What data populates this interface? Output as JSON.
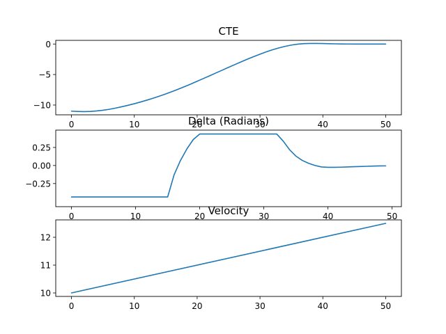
{
  "chart_data": [
    {
      "type": "line",
      "title": "CTE",
      "xlabel": "",
      "ylabel": "",
      "xlim": [
        -2.5,
        52.5
      ],
      "ylim": [
        -11.6,
        0.6
      ],
      "xticks": [
        0,
        10,
        20,
        30,
        40,
        50
      ],
      "yticks": [
        -10,
        -5,
        0
      ],
      "grid": false,
      "color": "#1f77b4",
      "x": [
        0,
        1,
        2,
        3,
        4,
        5,
        6,
        7,
        8,
        9,
        10,
        11,
        12,
        13,
        14,
        15,
        16,
        17,
        18,
        19,
        20,
        21,
        22,
        23,
        24,
        25,
        26,
        27,
        28,
        29,
        30,
        31,
        32,
        33,
        34,
        35,
        36,
        37,
        38,
        39,
        40,
        41,
        42,
        43,
        44,
        45,
        46,
        47,
        48,
        49,
        50
      ],
      "y": [
        -11.0,
        -11.05,
        -11.08,
        -11.05,
        -10.97,
        -10.85,
        -10.7,
        -10.5,
        -10.28,
        -10.04,
        -9.78,
        -9.5,
        -9.2,
        -8.88,
        -8.54,
        -8.18,
        -7.8,
        -7.4,
        -6.98,
        -6.55,
        -6.1,
        -5.65,
        -5.2,
        -4.74,
        -4.28,
        -3.82,
        -3.37,
        -2.92,
        -2.48,
        -2.06,
        -1.66,
        -1.28,
        -0.94,
        -0.64,
        -0.38,
        -0.17,
        -0.02,
        0.07,
        0.1,
        0.1,
        0.08,
        0.05,
        0.03,
        0.01,
        0.0,
        -0.01,
        -0.01,
        -0.01,
        -0.01,
        -0.01,
        -0.01
      ]
    },
    {
      "type": "line",
      "title": "Delta (Radians)",
      "xlabel": "",
      "ylabel": "",
      "xlim": [
        -2.45,
        51.45
      ],
      "ylim": [
        -0.57,
        0.49
      ],
      "xticks": [
        0,
        10,
        20,
        30,
        40,
        50
      ],
      "yticks": [
        -0.25,
        0.0,
        0.25
      ],
      "ytick_labels": [
        "−0.25",
        "0.00",
        "0.25"
      ],
      "grid": false,
      "color": "#1f77b4",
      "x": [
        0,
        1,
        2,
        3,
        4,
        5,
        6,
        7,
        8,
        9,
        10,
        11,
        12,
        13,
        14,
        15,
        16,
        17,
        18,
        19,
        20,
        21,
        22,
        23,
        24,
        25,
        26,
        27,
        28,
        29,
        30,
        31,
        32,
        33,
        34,
        35,
        36,
        37,
        38,
        39,
        40,
        41,
        42,
        43,
        44,
        45,
        46,
        47,
        48,
        49
      ],
      "y": [
        -0.436,
        -0.436,
        -0.436,
        -0.436,
        -0.436,
        -0.436,
        -0.436,
        -0.436,
        -0.436,
        -0.436,
        -0.436,
        -0.436,
        -0.436,
        -0.436,
        -0.436,
        -0.436,
        -0.13,
        0.07,
        0.23,
        0.36,
        0.436,
        0.436,
        0.436,
        0.436,
        0.436,
        0.436,
        0.436,
        0.436,
        0.436,
        0.436,
        0.436,
        0.436,
        0.436,
        0.34,
        0.22,
        0.13,
        0.07,
        0.03,
        0.0,
        -0.02,
        -0.025,
        -0.025,
        -0.023,
        -0.02,
        -0.017,
        -0.014,
        -0.011,
        -0.008,
        -0.006,
        -0.005
      ]
    },
    {
      "type": "line",
      "title": "Velocity",
      "xlabel": "",
      "ylabel": "",
      "xlim": [
        -2.5,
        52.5
      ],
      "ylim": [
        9.875,
        12.625
      ],
      "xticks": [
        0,
        10,
        20,
        30,
        40,
        50
      ],
      "yticks": [
        10,
        11,
        12
      ],
      "grid": false,
      "color": "#1f77b4",
      "x": [
        0,
        50
      ],
      "y": [
        10.0,
        12.5
      ]
    }
  ]
}
